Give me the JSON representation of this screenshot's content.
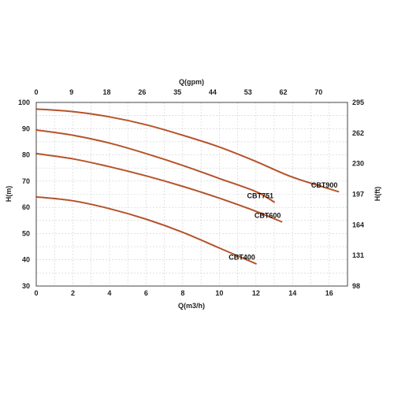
{
  "chart_data": {
    "type": "line",
    "xlabel": "Q(m3/h)",
    "ylabel": "H(m)",
    "x_top_label": "Q(gpm)",
    "y_right_label": "H(ft)",
    "xlim": [
      0,
      17
    ],
    "ylim": [
      30,
      100
    ],
    "x_ticks": [
      0,
      2,
      4,
      6,
      8,
      10,
      12,
      14,
      16
    ],
    "y_ticks": [
      30,
      40,
      50,
      60,
      70,
      80,
      90,
      100
    ],
    "x_top_ticks": [
      0,
      9,
      18,
      26,
      35,
      44,
      53,
      62,
      70
    ],
    "y_right_ticks": [
      98,
      131,
      164,
      197,
      230,
      262,
      295
    ],
    "grid": true,
    "line_color": "#b5532a",
    "series": [
      {
        "name": "CBT900",
        "x": [
          0,
          2,
          4,
          6,
          8,
          10,
          12,
          14,
          16.5
        ],
        "y": [
          97.5,
          96.5,
          94.5,
          91.5,
          87.5,
          83,
          77.5,
          71.5,
          66
        ]
      },
      {
        "name": "CBT751",
        "x": [
          0,
          2,
          4,
          6,
          8,
          10,
          12,
          13
        ],
        "y": [
          89.5,
          87.5,
          84.5,
          80.5,
          76,
          71,
          66,
          62
        ]
      },
      {
        "name": "CBT600",
        "x": [
          0,
          2,
          4,
          6,
          8,
          10,
          12,
          13.4
        ],
        "y": [
          80.5,
          78.5,
          75.5,
          72,
          68,
          63.5,
          58.5,
          54.5
        ]
      },
      {
        "name": "CBT400",
        "x": [
          0,
          2,
          4,
          6,
          8,
          10,
          12
        ],
        "y": [
          64,
          62.5,
          59.5,
          55.5,
          50.5,
          44.5,
          38.5
        ]
      }
    ]
  }
}
